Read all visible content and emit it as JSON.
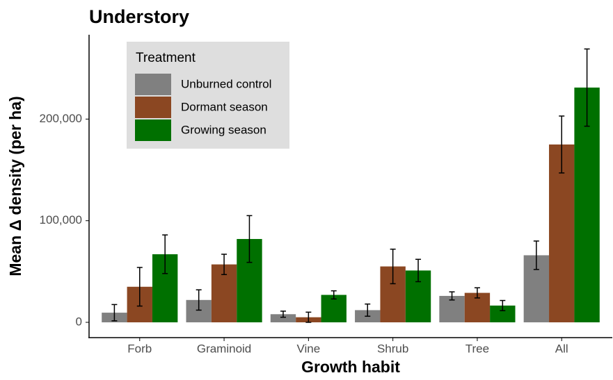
{
  "chart_data": {
    "type": "bar",
    "title": "Understory",
    "x_label": "Growth habit",
    "y_label": "Mean Δ density (per ha)",
    "categories": [
      "Forb",
      "Graminoid",
      "Vine",
      "Shrub",
      "Tree",
      "All"
    ],
    "legend_title": "Treatment",
    "series": [
      {
        "name": "Unburned control",
        "color": "#808080",
        "values": [
          9500,
          22000,
          8000,
          12000,
          26000,
          66000
        ],
        "errors": [
          8000,
          10000,
          3000,
          6000,
          4000,
          14000
        ]
      },
      {
        "name": "Dormant season",
        "color": "#8b4722",
        "values": [
          35000,
          57000,
          5000,
          55000,
          29000,
          175000
        ],
        "errors": [
          19000,
          10000,
          5000,
          17000,
          5000,
          28000
        ]
      },
      {
        "name": "Growing season",
        "color": "#007000",
        "values": [
          67000,
          82000,
          27000,
          51000,
          16500,
          231000
        ],
        "errors": [
          19000,
          23000,
          4000,
          11000,
          5000,
          38000
        ]
      }
    ],
    "ylim": [
      -13000,
      283000
    ],
    "yticks": [
      0,
      {
        "value": 100000,
        "label": "100,000"
      },
      {
        "value": 200000,
        "label": "200,000"
      }
    ],
    "grid": false,
    "legend_position": "top-left"
  }
}
